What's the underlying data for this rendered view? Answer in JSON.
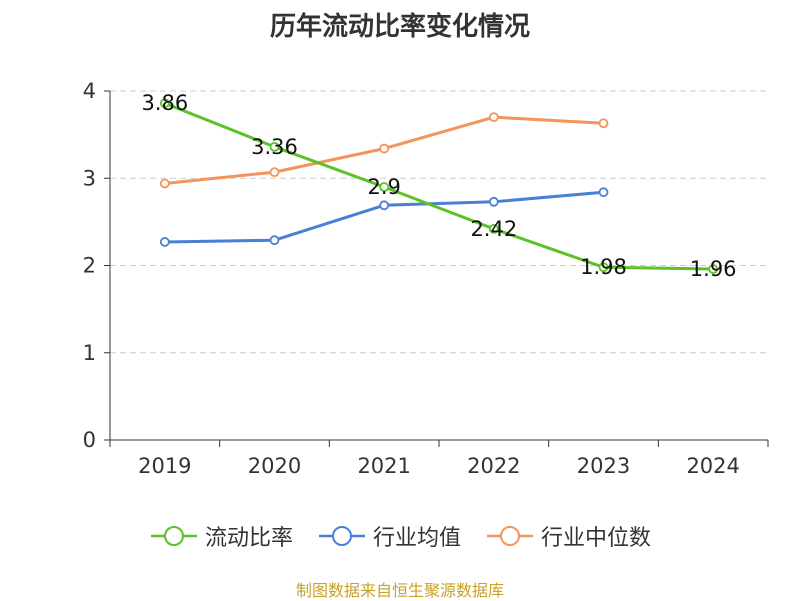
{
  "title": "历年流动比率变化情况",
  "source_note": "制图数据来自恒生聚源数据库",
  "chart_data": {
    "type": "line",
    "categories": [
      "2019",
      "2020",
      "2021",
      "2022",
      "2023",
      "2024"
    ],
    "ylim": [
      0,
      4
    ],
    "yticks": [
      0,
      1,
      2,
      3,
      4
    ],
    "grid": true,
    "legend_placement": "bottom",
    "series": [
      {
        "name": "流动比率",
        "color": "#5bc228",
        "values": [
          3.86,
          3.36,
          2.9,
          2.42,
          1.98,
          1.96
        ],
        "labels": [
          "3.86",
          "3.36",
          "2.9",
          "2.42",
          "1.98",
          "1.96"
        ]
      },
      {
        "name": "行业均值",
        "color": "#4a7fd6",
        "values": [
          2.27,
          2.29,
          2.69,
          2.73,
          2.84,
          null
        ],
        "labels": []
      },
      {
        "name": "行业中位数",
        "color": "#f4935a",
        "values": [
          2.94,
          3.07,
          3.34,
          3.7,
          3.63,
          null
        ],
        "labels": []
      }
    ]
  }
}
